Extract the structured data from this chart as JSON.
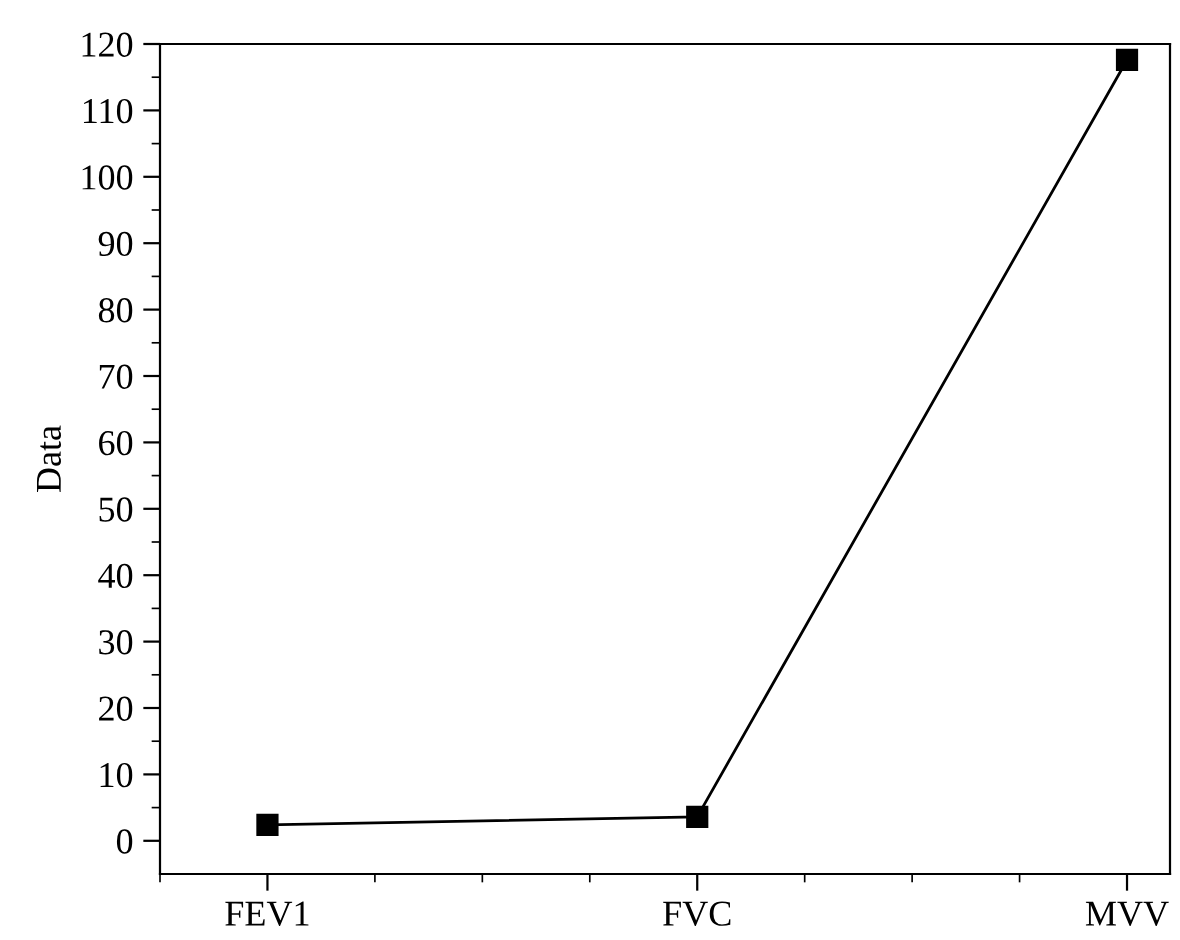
{
  "chart_data": {
    "type": "line",
    "ylabel": "Data",
    "categories": [
      "FEV1",
      "FVC",
      "MVV"
    ],
    "series": [
      {
        "color": "#000000",
        "values": [
          2.4,
          3.6,
          117.6
        ]
      }
    ],
    "ylim": [
      -5,
      120
    ],
    "yticks": [
      0,
      10,
      20,
      30,
      40,
      50,
      60,
      70,
      80,
      90,
      100,
      110,
      120
    ],
    "marker": "square",
    "line_style": "solid",
    "grid": false,
    "legend": false
  }
}
